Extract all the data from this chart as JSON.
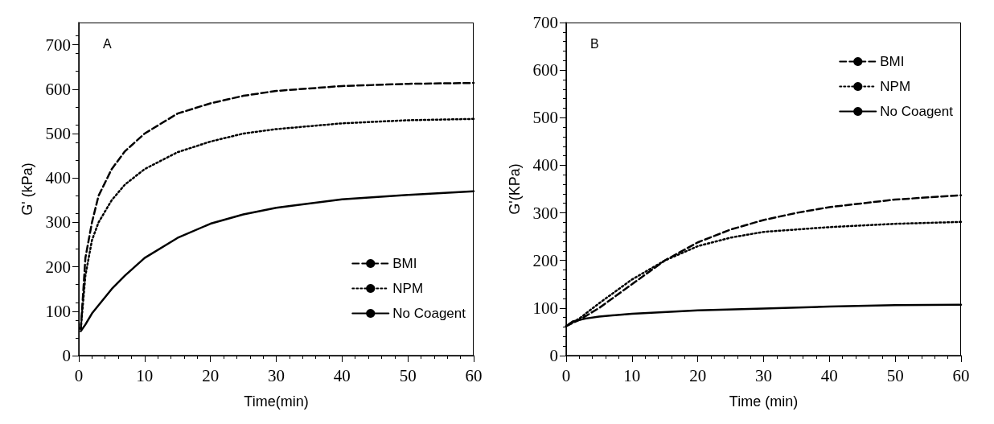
{
  "chart_data": [
    {
      "type": "line",
      "xlabel": "Time(min)",
      "ylabel": "G' (kPa)",
      "annotations": [
        "A"
      ],
      "xlim": [
        0,
        60
      ],
      "xticks": [
        0,
        10,
        20,
        30,
        40,
        50,
        60
      ],
      "ylim": [
        0,
        750
      ],
      "yticks": [
        0,
        100,
        200,
        300,
        400,
        500,
        600,
        700
      ],
      "legend": "bottom right",
      "grid": false,
      "marker": "none",
      "series": [
        {
          "name": "BMI",
          "color": "#000000",
          "line_style": "dashed",
          "x": [
            0.3,
            0.7,
            1,
            2,
            3,
            5,
            7,
            10,
            15,
            20,
            25,
            30,
            40,
            50,
            60
          ],
          "values": [
            60,
            150,
            220,
            300,
            360,
            420,
            460,
            500,
            545,
            568,
            585,
            596,
            607,
            612,
            614
          ]
        },
        {
          "name": "NPM",
          "color": "#000000",
          "line_style": "dotted",
          "x": [
            0.3,
            1,
            2,
            3,
            5,
            7,
            10,
            15,
            20,
            25,
            30,
            40,
            50,
            60
          ],
          "values": [
            60,
            180,
            260,
            300,
            350,
            385,
            420,
            458,
            482,
            500,
            510,
            523,
            530,
            533
          ]
        },
        {
          "name": "No Coagent",
          "color": "#000000",
          "line_style": "solid",
          "x": [
            0.3,
            1,
            2,
            5,
            7,
            10,
            15,
            20,
            25,
            30,
            40,
            50,
            60
          ],
          "values": [
            55,
            70,
            95,
            150,
            180,
            220,
            265,
            297,
            318,
            333,
            352,
            362,
            370
          ]
        }
      ]
    },
    {
      "type": "line",
      "xlabel": "Time (min)",
      "ylabel": "G'(KPa)",
      "annotations": [
        "B"
      ],
      "xlim": [
        0,
        60
      ],
      "xticks": [
        0,
        10,
        20,
        30,
        40,
        50,
        60
      ],
      "ylim": [
        0,
        700
      ],
      "yticks": [
        0,
        100,
        200,
        300,
        400,
        500,
        600,
        700
      ],
      "legend": "top right",
      "grid": false,
      "marker": "none",
      "series": [
        {
          "name": "BMI",
          "color": "#000000",
          "line_style": "dashed",
          "x": [
            0,
            2,
            5,
            10,
            15,
            20,
            25,
            30,
            35,
            40,
            50,
            60
          ],
          "values": [
            62,
            75,
            100,
            150,
            200,
            238,
            265,
            285,
            300,
            312,
            328,
            337
          ]
        },
        {
          "name": "NPM",
          "color": "#000000",
          "line_style": "dotted",
          "x": [
            0,
            2,
            5,
            10,
            15,
            20,
            25,
            30,
            40,
            50,
            60
          ],
          "values": [
            62,
            78,
            110,
            160,
            200,
            230,
            248,
            260,
            270,
            277,
            281
          ]
        },
        {
          "name": "No Coagent",
          "color": "#000000",
          "line_style": "solid",
          "x": [
            0,
            1,
            3,
            5,
            10,
            20,
            30,
            40,
            50,
            60
          ],
          "values": [
            62,
            72,
            78,
            82,
            88,
            95,
            99,
            103,
            106,
            107
          ]
        }
      ]
    }
  ]
}
